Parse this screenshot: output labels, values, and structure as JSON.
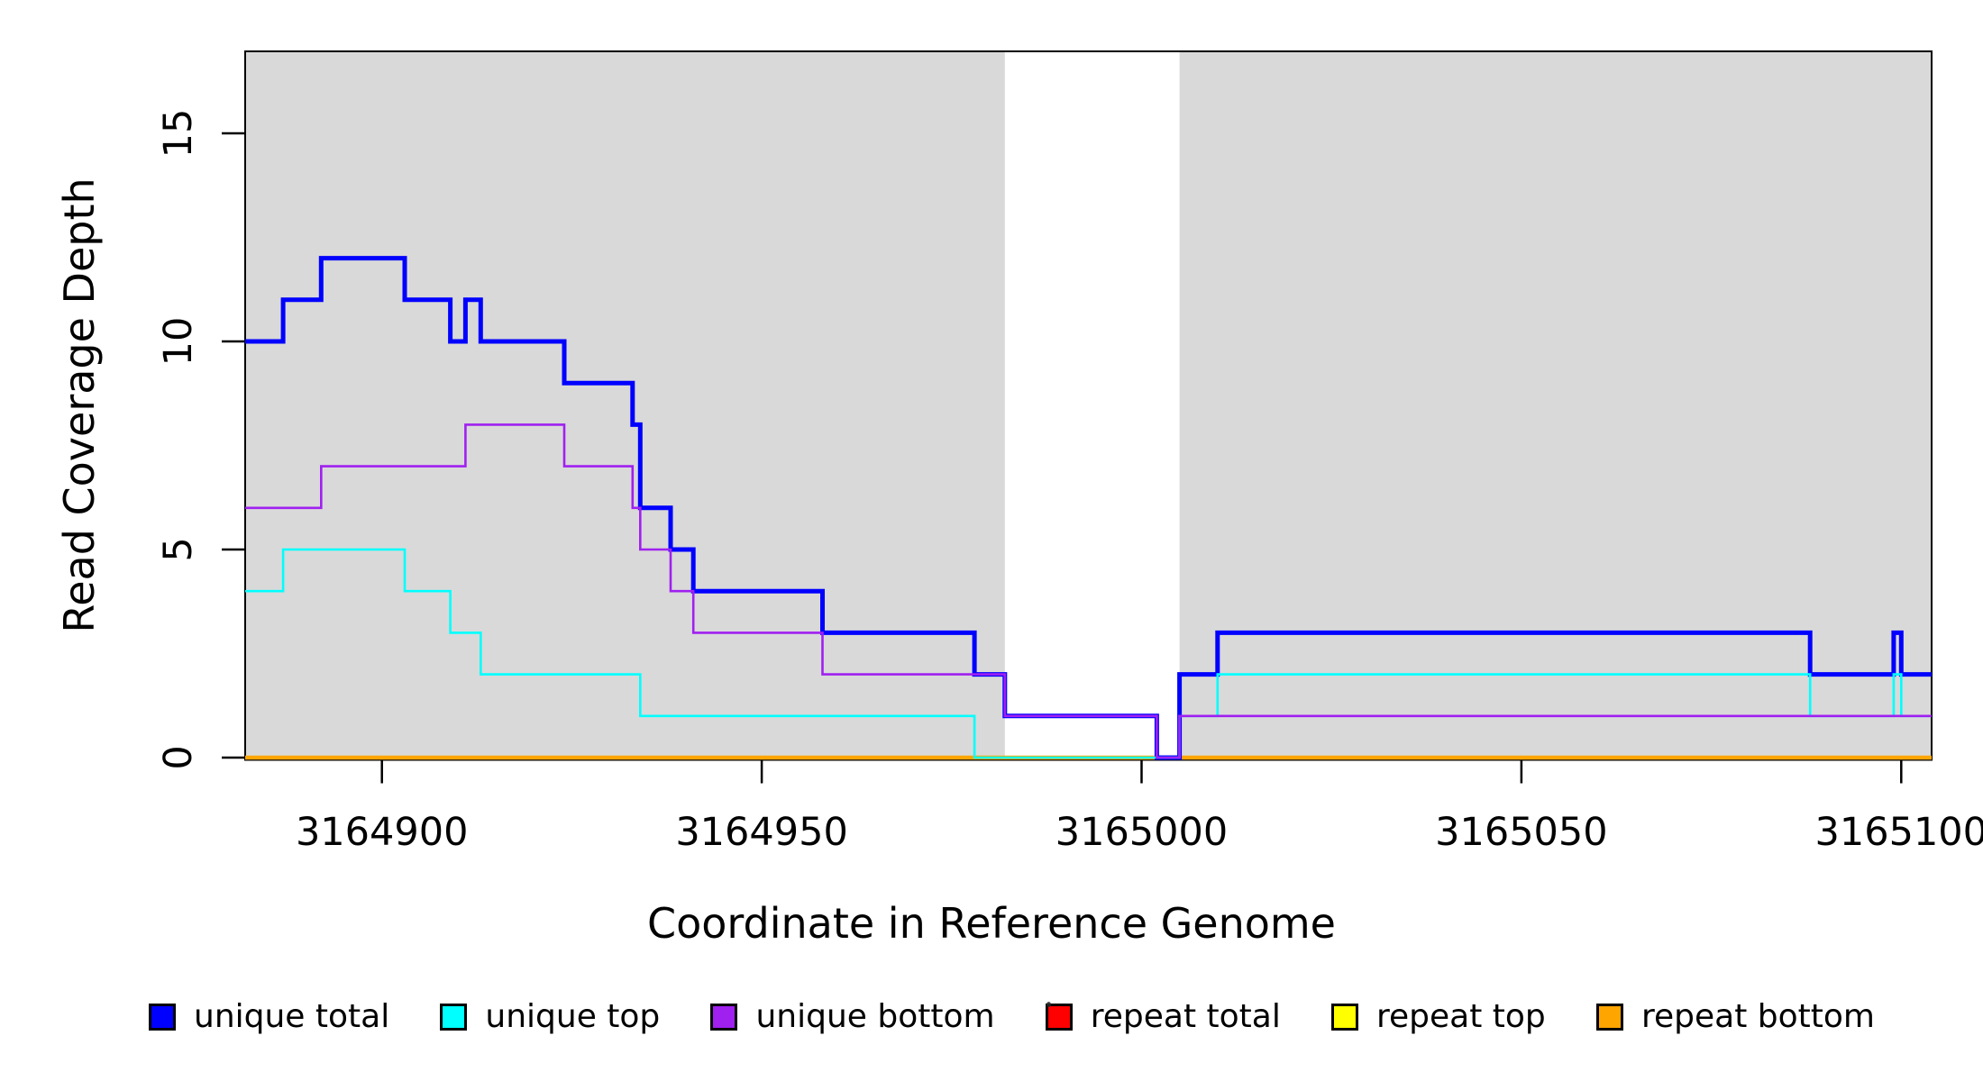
{
  "chart_data": {
    "type": "line",
    "subtype": "step",
    "title": "",
    "xlabel": "Coordinate in Reference Genome",
    "ylabel": "Read Coverage Depth",
    "xlim": [
      3164882,
      3165104
    ],
    "ylim": [
      0,
      17
    ],
    "x_ticks": [
      3164900,
      3164950,
      3165000,
      3165050,
      3165100
    ],
    "x_tick_labels": [
      "3164900",
      "3164950",
      "3165000",
      "3165050",
      "3165100"
    ],
    "y_ticks": [
      0,
      5,
      10,
      15
    ],
    "y_tick_labels": [
      "0",
      "5",
      "10",
      "15"
    ],
    "grid": false,
    "plot_background": "#FFFFFF",
    "shaded_regions": [
      {
        "name": "unique-region-left",
        "x0": 3164882,
        "x1": 3164982,
        "color": "#D9D9D9"
      },
      {
        "name": "unique-region-right",
        "x0": 3165005,
        "x1": 3165104,
        "color": "#D9D9D9"
      }
    ],
    "series": [
      {
        "name": "unique total",
        "color": "#0000FF",
        "lwd": 5.0,
        "x_start": 3164882,
        "start_value": 10,
        "steps": [
          [
            3164887,
            11
          ],
          [
            3164892,
            12
          ],
          [
            3164903,
            11
          ],
          [
            3164909,
            10
          ],
          [
            3164911,
            11
          ],
          [
            3164913,
            10
          ],
          [
            3164924,
            9
          ],
          [
            3164933,
            8
          ],
          [
            3164934,
            6
          ],
          [
            3164938,
            5
          ],
          [
            3164941,
            4
          ],
          [
            3164958,
            3
          ],
          [
            3164978,
            2
          ],
          [
            3164982,
            1
          ],
          [
            3165002,
            0
          ],
          [
            3165005,
            2
          ],
          [
            3165010,
            3
          ],
          [
            3165088,
            2
          ],
          [
            3165099,
            3
          ],
          [
            3165100,
            2
          ]
        ],
        "x_end": 3165104
      },
      {
        "name": "unique top",
        "color": "#00FFFF",
        "lwd": 2.6,
        "x_start": 3164882,
        "start_value": 4,
        "steps": [
          [
            3164887,
            5
          ],
          [
            3164903,
            4
          ],
          [
            3164909,
            3
          ],
          [
            3164913,
            2
          ],
          [
            3164934,
            1
          ],
          [
            3164978,
            0
          ],
          [
            3165005,
            1
          ],
          [
            3165010,
            2
          ],
          [
            3165088,
            1
          ],
          [
            3165099,
            2
          ],
          [
            3165100,
            1
          ]
        ],
        "x_end": 3165104
      },
      {
        "name": "unique bottom",
        "color": "#A020F0",
        "lwd": 2.6,
        "x_start": 3164882,
        "start_value": 6,
        "steps": [
          [
            3164892,
            7
          ],
          [
            3164911,
            8
          ],
          [
            3164924,
            7
          ],
          [
            3164933,
            6
          ],
          [
            3164934,
            5
          ],
          [
            3164938,
            4
          ],
          [
            3164941,
            3
          ],
          [
            3164958,
            2
          ],
          [
            3164982,
            1
          ],
          [
            3165002,
            0
          ],
          [
            3165005,
            1
          ]
        ],
        "x_end": 3165104
      },
      {
        "name": "repeat total",
        "color": "#FF0000",
        "lwd": 2.6,
        "x_start": 3164882,
        "start_value": 0,
        "steps": [],
        "x_end": 3165104
      },
      {
        "name": "repeat top",
        "color": "#FFFF00",
        "lwd": 2.6,
        "x_start": 3164882,
        "start_value": 0,
        "steps": [],
        "x_end": 3165104
      },
      {
        "name": "repeat bottom",
        "color": "#FFA500",
        "lwd": 4.5,
        "x_start": 3164882,
        "start_value": 0,
        "steps": [],
        "x_end": 3165104
      }
    ],
    "draw_order": [
      3,
      4,
      5,
      0,
      1,
      2
    ],
    "legend": {
      "position": "bottom",
      "entries": [
        {
          "label": "unique total",
          "color": "#0000FF"
        },
        {
          "label": "unique top",
          "color": "#00FFFF"
        },
        {
          "label": "unique bottom",
          "color": "#A020F0"
        },
        {
          "label": "repeat total",
          "color": "#FF0000"
        },
        {
          "label": "repeat top",
          "color": "#FFFF00"
        },
        {
          "label": "repeat bottom",
          "color": "#FFA500"
        }
      ]
    }
  }
}
